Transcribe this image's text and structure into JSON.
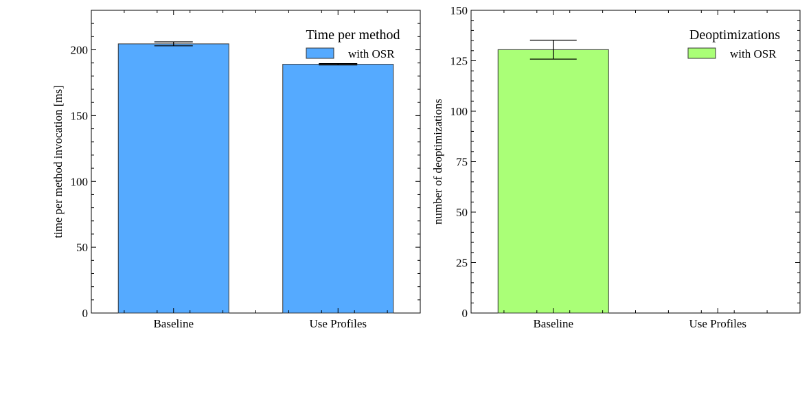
{
  "chart_data": [
    {
      "type": "bar",
      "categories": [
        "Baseline",
        "Use Profiles"
      ],
      "series": [
        {
          "name": "with OSR",
          "values": [
            204.5,
            189.0
          ],
          "errors": [
            1.5,
            0.5
          ],
          "color": "#55aaff"
        }
      ],
      "title": "",
      "legend_title": "Time per method",
      "xlabel": "",
      "ylabel": "time per method invocation [ms]",
      "ylim": [
        0,
        230
      ],
      "yticks": [
        0,
        50,
        100,
        150,
        200
      ],
      "ytick_labels": [
        "0",
        "50",
        "100",
        "150",
        "200"
      ],
      "y_minor_step": 10,
      "legend_position": "top-right",
      "grid": false
    },
    {
      "type": "bar",
      "categories": [
        "Baseline",
        "Use Profiles"
      ],
      "series": [
        {
          "name": "with OSR",
          "values": [
            130.5,
            0
          ],
          "errors": [
            4.7,
            0
          ],
          "color": "#aaff77"
        }
      ],
      "title": "",
      "legend_title": "Deoptimizations",
      "xlabel": "",
      "ylabel": "number of deoptimizations",
      "ylim": [
        0,
        150
      ],
      "yticks": [
        0,
        25,
        50,
        75,
        100,
        125,
        150
      ],
      "ytick_labels": [
        "0",
        "25",
        "50",
        "75",
        "100",
        "125",
        "150"
      ],
      "y_minor_step": 5,
      "legend_position": "top-right",
      "grid": false
    }
  ]
}
